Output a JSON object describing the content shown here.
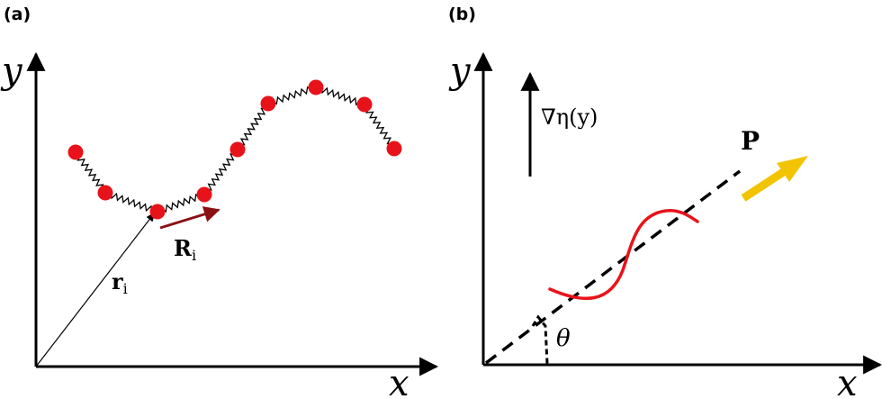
{
  "panel_a": {
    "label": "(a)",
    "axis_x": "x",
    "axis_y": "y",
    "position_vector": {
      "symbol": "r",
      "subscript": "i"
    },
    "orientation_vector": {
      "symbol": "R",
      "subscript": "i"
    },
    "bead_color": "#e8131a",
    "orientation_color": "#8b1014"
  },
  "panel_b": {
    "label": "(b)",
    "axis_x": "x",
    "axis_y": "y",
    "gradient_label": "∇η(y)",
    "polarization_label": "P",
    "angle_label": "θ",
    "filament_color": "#e8131a",
    "polarization_arrow_color": "#f2c400"
  }
}
